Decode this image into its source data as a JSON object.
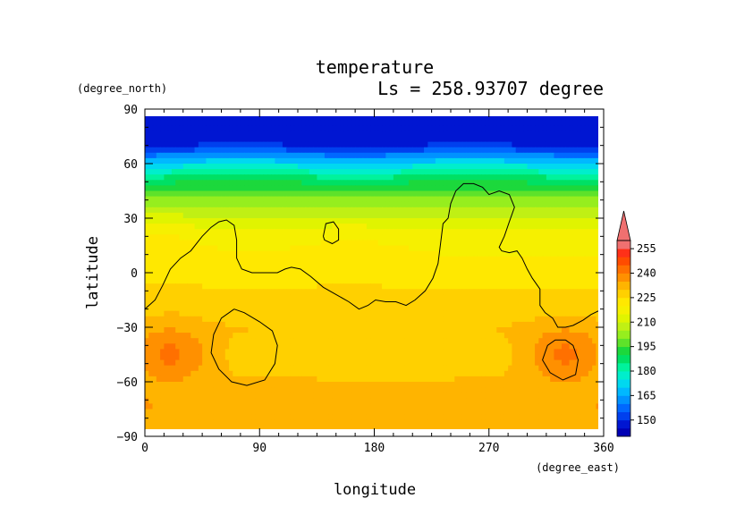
{
  "chart_data": {
    "type": "heatmap",
    "title": "temperature",
    "subtitle": "Ls = 258.93707 degree",
    "xlabel": "longitude",
    "ylabel": "latitude",
    "x_units": "(degree_east)",
    "y_units": "(degree_north)",
    "xlim": [
      0,
      360
    ],
    "ylim": [
      -90,
      90
    ],
    "x_ticks": [
      0,
      90,
      180,
      270,
      360
    ],
    "y_ticks": [
      -90,
      -60,
      -30,
      0,
      30,
      60,
      90
    ],
    "x_tick_labels": [
      "0",
      "90",
      "180",
      "270",
      "360"
    ],
    "y_tick_labels": [
      "−90",
      "−60",
      "−30",
      "0",
      "30",
      "60",
      "90"
    ],
    "data_extent": {
      "lon": [
        0,
        356
      ],
      "lat": [
        -87,
        87
      ]
    },
    "colorbar": {
      "levels": [
        140,
        145,
        150,
        155,
        160,
        165,
        170,
        175,
        180,
        185,
        190,
        195,
        200,
        205,
        210,
        215,
        220,
        225,
        230,
        235,
        240,
        245,
        250,
        255,
        260
      ],
      "colors": [
        "#0000b4",
        "#0016d2",
        "#0040ee",
        "#0068ff",
        "#0092ff",
        "#00b8ff",
        "#00d8f0",
        "#00eecc",
        "#00f29c",
        "#00e064",
        "#1cd83c",
        "#5ee22a",
        "#96ee1e",
        "#c0f014",
        "#e0f400",
        "#f6f000",
        "#ffe800",
        "#ffd000",
        "#ffb400",
        "#ff9000",
        "#ff7000",
        "#ff4c00",
        "#ff3018",
        "#f07070"
      ],
      "tick_values": [
        150,
        165,
        180,
        195,
        210,
        225,
        240,
        255
      ],
      "tick_labels": [
        "150",
        "165",
        "180",
        "195",
        "210",
        "225",
        "240",
        "255"
      ],
      "extend": "max"
    },
    "temperature_field": {
      "latitudes": [
        87,
        84,
        81,
        78,
        75,
        72,
        69,
        66,
        63,
        60,
        57,
        54,
        51,
        48,
        45,
        42,
        39,
        36,
        33,
        30,
        27,
        24,
        21,
        18,
        15,
        12,
        9,
        6,
        3,
        0,
        -3,
        -6,
        -9,
        -12,
        -15,
        -18,
        -21,
        -24,
        -27,
        -30,
        -33,
        -36,
        -39,
        -42,
        -45,
        -48,
        -51,
        -54,
        -57,
        -60,
        -63,
        -66,
        -69,
        -72,
        -75,
        -78,
        -81,
        -84,
        -87
      ],
      "zonal_mean_K": [
        146,
        146,
        147,
        147,
        147,
        148,
        151,
        158,
        165,
        172,
        178,
        183,
        188,
        192,
        196,
        199,
        202,
        204,
        207,
        210,
        212,
        214,
        216,
        217,
        218,
        219,
        220,
        220,
        221,
        222,
        223,
        224,
        225,
        226,
        227,
        228,
        229,
        229,
        229,
        230,
        230,
        229,
        229,
        228,
        228,
        228,
        229,
        229,
        230,
        231,
        231,
        232,
        232,
        232,
        233,
        233,
        233,
        233,
        233
      ],
      "regional_maxima": [
        {
          "lon": 20,
          "lat": -45,
          "value_K": 242
        },
        {
          "lon": 330,
          "lat": -45,
          "value_K": 242
        }
      ]
    },
    "contours": [
      {
        "name": "main-outline",
        "points": [
          [
            0,
            -20
          ],
          [
            8,
            -15
          ],
          [
            14,
            -7
          ],
          [
            20,
            2
          ],
          [
            28,
            8
          ],
          [
            36,
            12
          ],
          [
            45,
            20
          ],
          [
            52,
            25
          ],
          [
            58,
            28
          ],
          [
            64,
            29
          ],
          [
            70,
            26
          ],
          [
            72,
            18
          ],
          [
            72,
            8
          ],
          [
            76,
            2
          ],
          [
            84,
            0
          ],
          [
            96,
            0
          ],
          [
            104,
            0
          ],
          [
            110,
            2
          ],
          [
            115,
            3
          ],
          [
            122,
            2
          ],
          [
            130,
            -2
          ],
          [
            140,
            -8
          ],
          [
            150,
            -12
          ],
          [
            160,
            -16
          ],
          [
            168,
            -20
          ],
          [
            175,
            -18
          ],
          [
            181,
            -15
          ],
          [
            189,
            -16
          ],
          [
            197,
            -16
          ],
          [
            205,
            -18
          ],
          [
            212,
            -15
          ],
          [
            220,
            -10
          ],
          [
            226,
            -3
          ],
          [
            230,
            5
          ],
          [
            232,
            16
          ],
          [
            234,
            27
          ],
          [
            238,
            30
          ],
          [
            240,
            38
          ],
          [
            244,
            45
          ],
          [
            250,
            49
          ],
          [
            258,
            49
          ],
          [
            265,
            47
          ],
          [
            270,
            43
          ],
          [
            278,
            45
          ],
          [
            286,
            43
          ],
          [
            290,
            36
          ],
          [
            286,
            28
          ],
          [
            282,
            20
          ],
          [
            278,
            14
          ],
          [
            280,
            12
          ],
          [
            286,
            11
          ],
          [
            292,
            12
          ],
          [
            296,
            8
          ],
          [
            300,
            2
          ],
          [
            304,
            -3
          ],
          [
            310,
            -9
          ],
          [
            310,
            -18
          ],
          [
            314,
            -22
          ],
          [
            320,
            -25
          ],
          [
            324,
            -30
          ],
          [
            330,
            -30
          ],
          [
            336,
            -29
          ],
          [
            344,
            -26
          ],
          [
            350,
            -23
          ],
          [
            356,
            -21
          ]
        ]
      },
      {
        "name": "small-island",
        "points": [
          [
            140,
            20
          ],
          [
            142,
            27
          ],
          [
            148,
            28
          ],
          [
            152,
            24
          ],
          [
            152,
            18
          ],
          [
            147,
            16
          ],
          [
            141,
            18
          ],
          [
            140,
            20
          ]
        ]
      },
      {
        "name": "west-southern-loop",
        "points": [
          [
            70,
            -20
          ],
          [
            78,
            -22
          ],
          [
            90,
            -27
          ],
          [
            100,
            -32
          ],
          [
            104,
            -40
          ],
          [
            102,
            -50
          ],
          [
            94,
            -59
          ],
          [
            80,
            -62
          ],
          [
            68,
            -60
          ],
          [
            58,
            -53
          ],
          [
            52,
            -44
          ],
          [
            54,
            -34
          ],
          [
            60,
            -25
          ],
          [
            70,
            -20
          ]
        ]
      },
      {
        "name": "east-southern-loop",
        "points": [
          [
            330,
            -37
          ],
          [
            336,
            -40
          ],
          [
            340,
            -48
          ],
          [
            338,
            -56
          ],
          [
            328,
            -59
          ],
          [
            318,
            -55
          ],
          [
            312,
            -48
          ],
          [
            316,
            -40
          ],
          [
            322,
            -37
          ],
          [
            330,
            -37
          ]
        ]
      }
    ]
  }
}
